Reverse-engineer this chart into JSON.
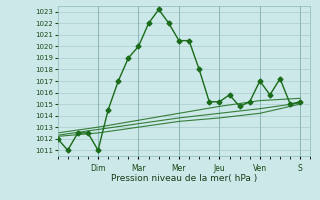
{
  "xlabel": "Pression niveau de la mer( hPa )",
  "ylim": [
    1010.5,
    1023.5
  ],
  "yticks": [
    1011,
    1012,
    1013,
    1014,
    1015,
    1016,
    1017,
    1018,
    1019,
    1020,
    1021,
    1022,
    1023
  ],
  "background_color": "#cce8e8",
  "grid_color": "#aacece",
  "line_color": "#1a6b1a",
  "day_labels": [
    "Dim",
    "Mar",
    "Mer",
    "Jeu",
    "Ven",
    "S"
  ],
  "day_positions": [
    4,
    8,
    12,
    16,
    20,
    24
  ],
  "xlim": [
    0,
    25
  ],
  "series": [
    {
      "x": [
        0,
        1,
        2,
        3,
        4,
        5,
        6,
        7,
        8,
        9,
        10,
        11,
        12,
        13,
        14,
        15,
        16,
        17,
        18,
        19,
        20,
        21,
        22,
        23,
        24
      ],
      "y": [
        1012,
        1011,
        1012.5,
        1012.5,
        1011,
        1014.5,
        1017,
        1019,
        1020,
        1022,
        1023.2,
        1022,
        1020.5,
        1020.5,
        1018,
        1015.2,
        1015.2,
        1015.8,
        1014.8,
        1015.2,
        1017,
        1015.8,
        1017.2,
        1015,
        1015.2
      ],
      "marker": "D",
      "markersize": 2.5,
      "linewidth": 1.0,
      "alpha": 1.0
    },
    {
      "x": [
        0,
        4,
        8,
        12,
        16,
        20,
        24
      ],
      "y": [
        1012.2,
        1012.5,
        1013.0,
        1013.5,
        1013.8,
        1014.2,
        1015.0
      ],
      "marker": null,
      "linewidth": 0.8,
      "alpha": 0.85
    },
    {
      "x": [
        0,
        4,
        8,
        12,
        16,
        20,
        24
      ],
      "y": [
        1012.3,
        1012.8,
        1013.3,
        1013.8,
        1014.2,
        1014.6,
        1015.1
      ],
      "marker": null,
      "linewidth": 0.8,
      "alpha": 0.85
    },
    {
      "x": [
        0,
        4,
        8,
        12,
        16,
        20,
        24
      ],
      "y": [
        1012.5,
        1013.0,
        1013.6,
        1014.2,
        1014.8,
        1015.3,
        1015.5
      ],
      "marker": null,
      "linewidth": 0.8,
      "alpha": 0.85
    }
  ]
}
